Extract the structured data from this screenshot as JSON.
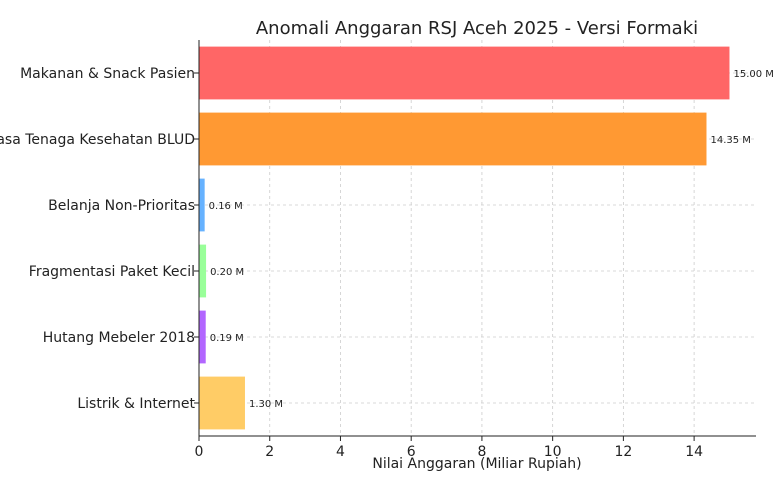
{
  "chart_data": {
    "type": "bar",
    "orientation": "horizontal",
    "title": "Anomali Anggaran RSJ Aceh 2025 - Versi Formaki",
    "xlabel": "Nilai Anggaran (Miliar Rupiah)",
    "ylabel": "",
    "xlim": [
      0,
      15.75
    ],
    "grid": true,
    "x_ticks": [
      0,
      2,
      4,
      6,
      8,
      10,
      12,
      14
    ],
    "categories": [
      "Makanan & Snack Pasien",
      "Jasa Tenaga Kesehatan BLUD",
      "Belanja Non-Prioritas",
      "Fragmentasi Paket Kecil",
      "Hutang Mebeler 2018",
      "Listrik & Internet"
    ],
    "values": [
      15.0,
      14.35,
      0.16,
      0.2,
      0.19,
      1.3
    ],
    "value_labels": [
      "15.00 M",
      "14.35 M",
      "0.16 M",
      "0.20 M",
      "0.19 M",
      "1.30 M"
    ],
    "colors": [
      "#ff6666",
      "#ff9933",
      "#66b2ff",
      "#99ff99",
      "#b266ff",
      "#ffcc66"
    ]
  }
}
